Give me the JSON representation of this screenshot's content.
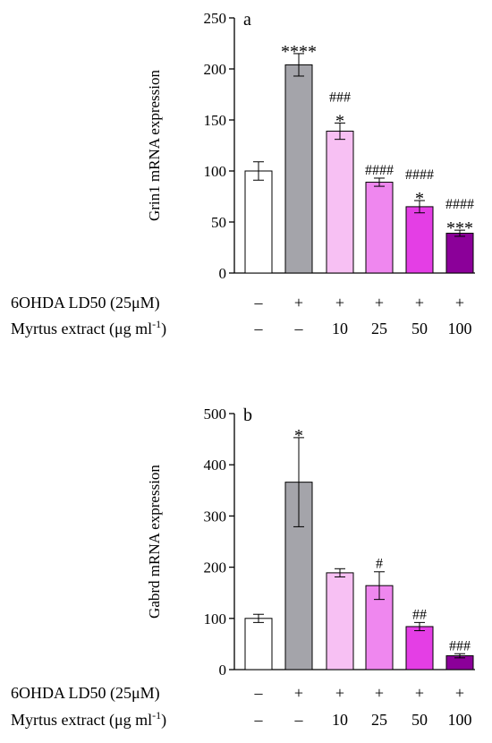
{
  "chart_data": [
    {
      "type": "bar",
      "panel_label": "a",
      "title": "",
      "ylabel": "Grin1 mRNA expression",
      "ylim": [
        0,
        250
      ],
      "yticks": [
        0,
        50,
        100,
        150,
        200,
        250
      ],
      "values": [
        100,
        204,
        139,
        89,
        65,
        39
      ],
      "errors": [
        9,
        11,
        8,
        4,
        6,
        3
      ],
      "colors": [
        "#ffffff",
        "#a4a4aa",
        "#f7c0f3",
        "#ef87ef",
        "#e43ee5",
        "#8b0099"
      ],
      "annotations": [
        [],
        [
          "****"
        ],
        [
          "###",
          "*"
        ],
        [
          "####"
        ],
        [
          "####",
          "*"
        ],
        [
          "####",
          "***"
        ]
      ],
      "row_labels": [
        "6OHDA LD50 (25μM)",
        "Myrtus extract (μg ml"
      ],
      "row_label_superscript": "-1",
      "row_label_suffix": ")",
      "rows": [
        [
          "–",
          "+",
          "+",
          "+",
          "+",
          "+"
        ],
        [
          "–",
          "–",
          "10",
          "25",
          "50",
          "100"
        ]
      ]
    },
    {
      "type": "bar",
      "panel_label": "b",
      "title": "",
      "ylabel": "Gabrd mRNA expression",
      "ylim": [
        0,
        500
      ],
      "yticks": [
        0,
        100,
        200,
        300,
        400,
        500
      ],
      "values": [
        100,
        366,
        189,
        164,
        84,
        27
      ],
      "errors": [
        8,
        87,
        8,
        27,
        8,
        4
      ],
      "colors": [
        "#ffffff",
        "#a4a4aa",
        "#f7c0f3",
        "#ef87ef",
        "#e43ee5",
        "#8b0099"
      ],
      "annotations": [
        [],
        [
          "*"
        ],
        [],
        [
          "#"
        ],
        [
          "##"
        ],
        [
          "###"
        ]
      ],
      "row_labels": [
        "6OHDA LD50 (25μM)",
        "Myrtus extract (μg ml"
      ],
      "row_label_superscript": "-1",
      "row_label_suffix": ")",
      "rows": [
        [
          "–",
          "+",
          "+",
          "+",
          "+",
          "+"
        ],
        [
          "–",
          "–",
          "10",
          "25",
          "50",
          "100"
        ]
      ]
    }
  ]
}
